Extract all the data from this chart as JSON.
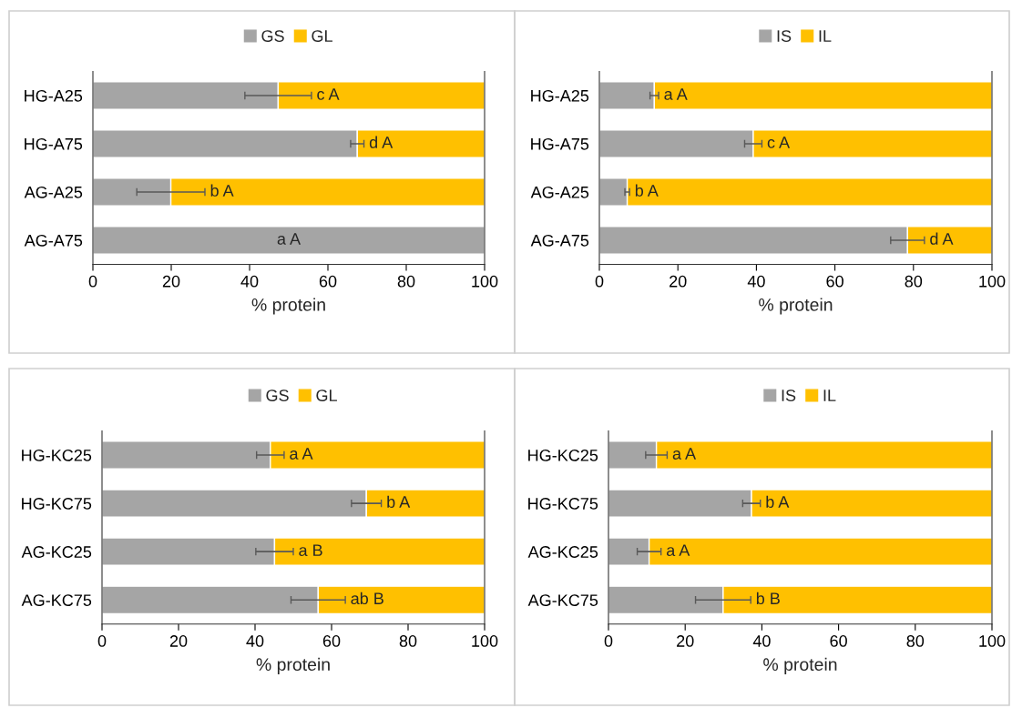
{
  "chart_data": [
    {
      "type": "bar",
      "orientation": "horizontal",
      "stacked": true,
      "categories": [
        "HG-A25",
        "HG-A75",
        "AG-A25",
        "AG-A75"
      ],
      "series": [
        {
          "name": "GS",
          "color": "#a5a5a5",
          "values": [
            47.3,
            67.5,
            19.9,
            100
          ],
          "errors": [
            8.5,
            1.7,
            8.7,
            null
          ],
          "value_labels": [
            "c A",
            "d A",
            "b A",
            "a A"
          ]
        },
        {
          "name": "GL",
          "color": "#ffc000",
          "values": [
            52.7,
            32.5,
            80.1,
            null
          ]
        }
      ],
      "xlim": [
        0,
        100
      ],
      "xticks": [
        0,
        20,
        40,
        60,
        80,
        100
      ],
      "xlabel": "% protein",
      "legend": "top"
    },
    {
      "type": "bar",
      "orientation": "horizontal",
      "stacked": true,
      "categories": [
        "HG-A25",
        "HG-A75",
        "AG-A25",
        "AG-A75"
      ],
      "series": [
        {
          "name": "IS",
          "color": "#a5a5a5",
          "values": [
            14.0,
            39.2,
            7.1,
            78.5
          ],
          "errors": [
            1.1,
            2.2,
            0.6,
            4.3
          ],
          "value_labels": [
            "a A",
            "c A",
            "b A",
            "d A"
          ]
        },
        {
          "name": "IL",
          "color": "#ffc000",
          "values": [
            86.0,
            60.8,
            92.9,
            21.5
          ]
        }
      ],
      "xlim": [
        0,
        100
      ],
      "xticks": [
        0,
        20,
        40,
        60,
        80,
        100
      ],
      "xlabel": "% protein",
      "legend": "top"
    },
    {
      "type": "bar",
      "orientation": "horizontal",
      "stacked": true,
      "categories": [
        "HG-KC25",
        "HG-KC75",
        "AG-KC25",
        "AG-KC75"
      ],
      "series": [
        {
          "name": "GS",
          "color": "#a5a5a5",
          "values": [
            44.0,
            69.1,
            45.1,
            56.5
          ],
          "errors": [
            3.6,
            3.9,
            4.9,
            7.1
          ],
          "value_labels": [
            "a A",
            "b A",
            "a B",
            "ab B"
          ]
        },
        {
          "name": "GL",
          "color": "#ffc000",
          "values": [
            56.0,
            30.9,
            54.9,
            43.5
          ]
        }
      ],
      "xlim": [
        0,
        100
      ],
      "xticks": [
        0,
        20,
        40,
        60,
        80,
        100
      ],
      "xlabel": "% protein",
      "legend": "top"
    },
    {
      "type": "bar",
      "orientation": "horizontal",
      "stacked": true,
      "categories": [
        "HG-KC25",
        "HG-KC75",
        "AG-KC25",
        "AG-KC75"
      ],
      "series": [
        {
          "name": "IS",
          "color": "#a5a5a5",
          "values": [
            12.5,
            37.3,
            10.6,
            29.9
          ],
          "errors": [
            2.8,
            2.3,
            3.1,
            7.2
          ],
          "value_labels": [
            "a A",
            "b A",
            "a A",
            "b B"
          ]
        },
        {
          "name": "IL",
          "color": "#ffc000",
          "values": [
            87.5,
            62.7,
            89.4,
            70.1
          ]
        }
      ],
      "xlim": [
        0,
        100
      ],
      "xticks": [
        0,
        20,
        40,
        60,
        80,
        100
      ],
      "xlabel": "% protein",
      "legend": "top"
    }
  ]
}
